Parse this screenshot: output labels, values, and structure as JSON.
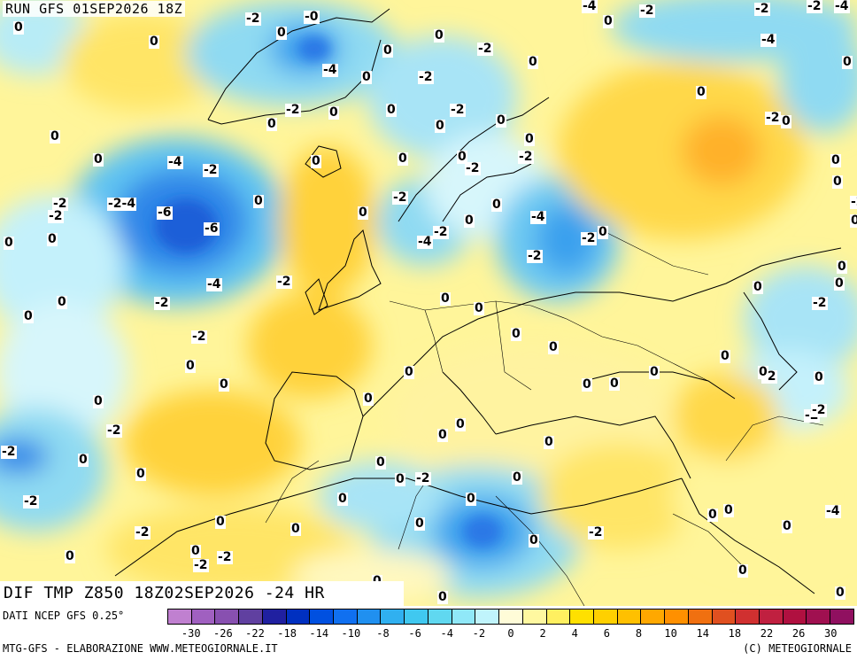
{
  "header": {
    "run_title": "RUN GFS 01SEP2026 18Z"
  },
  "map_label": "DIF TMP Z850 18Z02SEP2026 -24 HR",
  "footer": {
    "data_source": "DATI NCEP GFS 0.25°",
    "credit_left": "MTG-GFS - ELABORAZIONE WWW.METEOGIORNALE.IT",
    "credit_right": "(C) METEOGIORNALE"
  },
  "legend": {
    "colors": [
      "#c080d0",
      "#a060c0",
      "#8850b0",
      "#6040a0",
      "#2020a0",
      "#0030c0",
      "#0050e0",
      "#1070f0",
      "#2090f0",
      "#30b0f0",
      "#40c8f0",
      "#60d8f0",
      "#90e8f8",
      "#c0f4fc",
      "#fffcd8",
      "#fff8a0",
      "#fff060",
      "#ffe000",
      "#ffd000",
      "#ffc000",
      "#ffa800",
      "#ff9000",
      "#f07010",
      "#e05020",
      "#d03030",
      "#c02040",
      "#b01040",
      "#a01050",
      "#901060"
    ],
    "labels": [
      "-30",
      "-26",
      "-22",
      "-18",
      "-14",
      "-10",
      "-8",
      "-6",
      "-4",
      "-2",
      "0",
      "2",
      "4",
      "6",
      "8",
      "10",
      "14",
      "18",
      "22",
      "26",
      "30"
    ]
  },
  "values": [
    {
      "t": "0"
    },
    {
      "t": "-2"
    },
    {
      "t": "-0"
    },
    {
      "t": "-4"
    },
    {
      "t": "-2"
    },
    {
      "t": "-2"
    },
    {
      "t": "-2"
    },
    {
      "t": "-4"
    },
    {
      "t": "0"
    },
    {
      "t": "0"
    },
    {
      "t": "0"
    },
    {
      "t": "0"
    },
    {
      "t": "0"
    },
    {
      "t": "-2"
    },
    {
      "t": "-4"
    },
    {
      "t": "0"
    },
    {
      "t": "0"
    },
    {
      "t": "-4"
    },
    {
      "t": "0"
    },
    {
      "t": "-2"
    },
    {
      "t": "-2"
    },
    {
      "t": "0"
    },
    {
      "t": "0"
    },
    {
      "t": "0"
    },
    {
      "t": "-2"
    },
    {
      "t": "0"
    },
    {
      "t": "0"
    },
    {
      "t": "0"
    },
    {
      "t": "0"
    },
    {
      "t": "-2"
    },
    {
      "t": "0"
    },
    {
      "t": "0"
    },
    {
      "t": "-2"
    },
    {
      "t": "0"
    },
    {
      "t": "0"
    },
    {
      "t": "0"
    },
    {
      "t": "-4"
    },
    {
      "t": "-2"
    },
    {
      "t": "0"
    },
    {
      "t": "0"
    },
    {
      "t": "-2"
    },
    {
      "t": "0"
    },
    {
      "t": "-2"
    },
    {
      "t": "0"
    },
    {
      "t": "-2"
    },
    {
      "t": "-2"
    },
    {
      "t": "-2-4"
    },
    {
      "t": "-6"
    },
    {
      "t": "0"
    },
    {
      "t": "0"
    },
    {
      "t": "-2"
    },
    {
      "t": "0"
    },
    {
      "t": "0"
    },
    {
      "t": "0"
    },
    {
      "t": "-4"
    },
    {
      "t": "-2"
    },
    {
      "t": "-2"
    },
    {
      "t": "0"
    },
    {
      "t": "0"
    },
    {
      "t": "-6"
    },
    {
      "t": "-4"
    },
    {
      "t": "-2"
    },
    {
      "t": "-2"
    },
    {
      "t": "-4"
    },
    {
      "t": "-2"
    },
    {
      "t": "0"
    },
    {
      "t": "0"
    },
    {
      "t": "0"
    },
    {
      "t": "-2"
    },
    {
      "t": "0"
    },
    {
      "t": "-2"
    },
    {
      "t": "0"
    },
    {
      "t": "-2"
    },
    {
      "t": "0"
    },
    {
      "t": "0"
    },
    {
      "t": "0"
    },
    {
      "t": "0"
    },
    {
      "t": "0"
    },
    {
      "t": "0"
    },
    {
      "t": "-2"
    },
    {
      "t": "0"
    },
    {
      "t": "0"
    },
    {
      "t": "0"
    },
    {
      "t": "0"
    },
    {
      "t": "0"
    },
    {
      "t": "0"
    },
    {
      "t": "0"
    },
    {
      "t": "-2"
    },
    {
      "t": "0"
    },
    {
      "t": "0"
    },
    {
      "t": "0"
    },
    {
      "t": "-2"
    },
    {
      "t": "0"
    },
    {
      "t": "0"
    },
    {
      "t": "-2"
    },
    {
      "t": "0"
    },
    {
      "t": "0"
    },
    {
      "t": "0"
    },
    {
      "t": "0"
    },
    {
      "t": "-2"
    },
    {
      "t": "0"
    },
    {
      "t": "0"
    },
    {
      "t": "-2"
    },
    {
      "t": "0"
    },
    {
      "t": "0"
    },
    {
      "t": "0"
    },
    {
      "t": "-4"
    },
    {
      "t": "0"
    },
    {
      "t": "0"
    },
    {
      "t": "0"
    },
    {
      "t": "0"
    },
    {
      "t": "-2"
    },
    {
      "t": "-2"
    },
    {
      "t": "0"
    },
    {
      "t": "-2"
    },
    {
      "t": "0"
    },
    {
      "t": "-2"
    },
    {
      "t": "0"
    },
    {
      "t": "0"
    },
    {
      "t": "0"
    },
    {
      "t": "0"
    },
    {
      "t": "0"
    }
  ]
}
